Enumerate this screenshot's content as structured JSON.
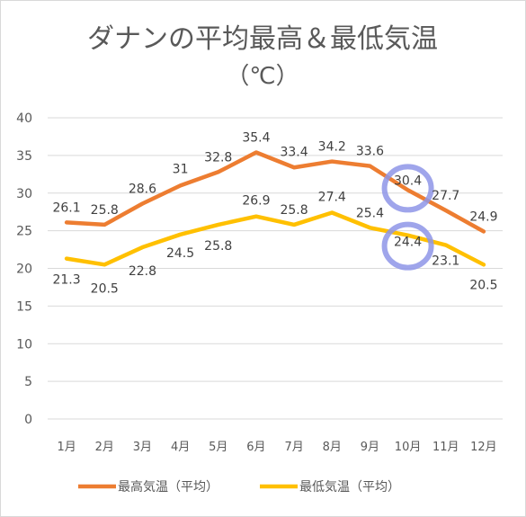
{
  "chart_data": {
    "type": "line",
    "title": "ダナンの平均最高＆最低気温",
    "subtitle": "（℃）",
    "xlabel": "",
    "ylabel": "",
    "categories": [
      "1月",
      "2月",
      "3月",
      "4月",
      "5月",
      "6月",
      "7月",
      "8月",
      "9月",
      "10月",
      "11月",
      "12月"
    ],
    "ylim": [
      0,
      40
    ],
    "yticks": [
      "0",
      "5",
      "10",
      "15",
      "20",
      "25",
      "30",
      "35",
      "40"
    ],
    "grid": true,
    "legend_position": "bottom",
    "series": [
      {
        "name": "最高気温（平均）",
        "color": "#ED7D31",
        "values": [
          26.1,
          25.8,
          28.6,
          31,
          32.8,
          35.4,
          33.4,
          34.2,
          33.6,
          30.4,
          27.7,
          24.9
        ],
        "labels": [
          "26.1",
          "25.8",
          "28.6",
          "31",
          "32.8",
          "35.4",
          "33.4",
          "34.2",
          "33.6",
          "30.4",
          "27.7",
          "24.9"
        ]
      },
      {
        "name": "最低気温（平均）",
        "color": "#FFC000",
        "values": [
          21.3,
          20.5,
          22.8,
          24.5,
          25.8,
          26.9,
          25.8,
          27.4,
          25.4,
          24.4,
          23.1,
          20.5
        ],
        "labels": [
          "21.3",
          "20.5",
          "22.8",
          "24.5",
          "25.8",
          "26.9",
          "25.8",
          "27.4",
          "25.4",
          "24.4",
          "23.1",
          "20.5"
        ]
      }
    ],
    "annotations": [
      {
        "type": "highlight-circle",
        "series": 0,
        "category": "10月",
        "color": "#8E95E8"
      },
      {
        "type": "highlight-circle",
        "series": 1,
        "category": "10月",
        "color": "#8E95E8"
      }
    ]
  }
}
